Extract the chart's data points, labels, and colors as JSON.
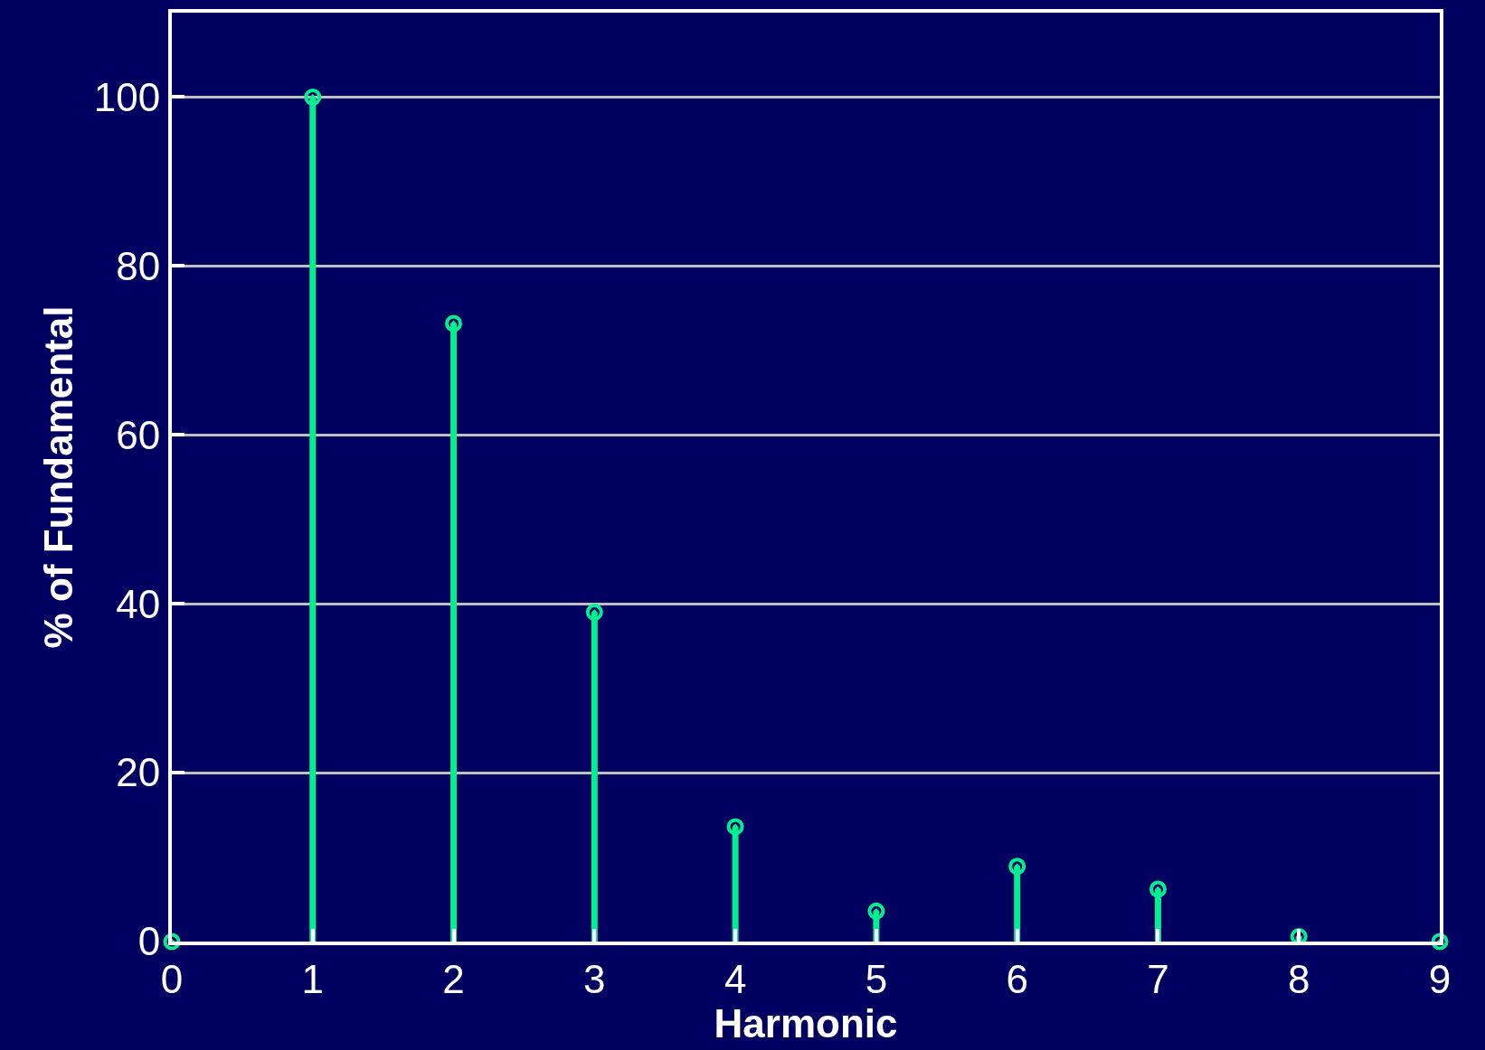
{
  "chart_data": {
    "type": "lollipop",
    "xlabel": "Harmonic",
    "ylabel": "% of Fundamental",
    "x": [
      0,
      1,
      2,
      3,
      4,
      5,
      6,
      7,
      8,
      9
    ],
    "series": [
      {
        "color": "#00f090",
        "values": [
          0,
          100,
          73.2,
          39,
          13.6,
          3.6,
          8.9,
          6.2,
          0.6,
          0
        ]
      }
    ],
    "xlim": [
      0,
      9
    ],
    "xticks": [
      0,
      1,
      2,
      3,
      4,
      5,
      6,
      7,
      8,
      9
    ],
    "ylim": [
      0,
      110
    ],
    "yticks": [
      0,
      20,
      40,
      60,
      80,
      100
    ],
    "grid": "y",
    "marker": "circle"
  }
}
